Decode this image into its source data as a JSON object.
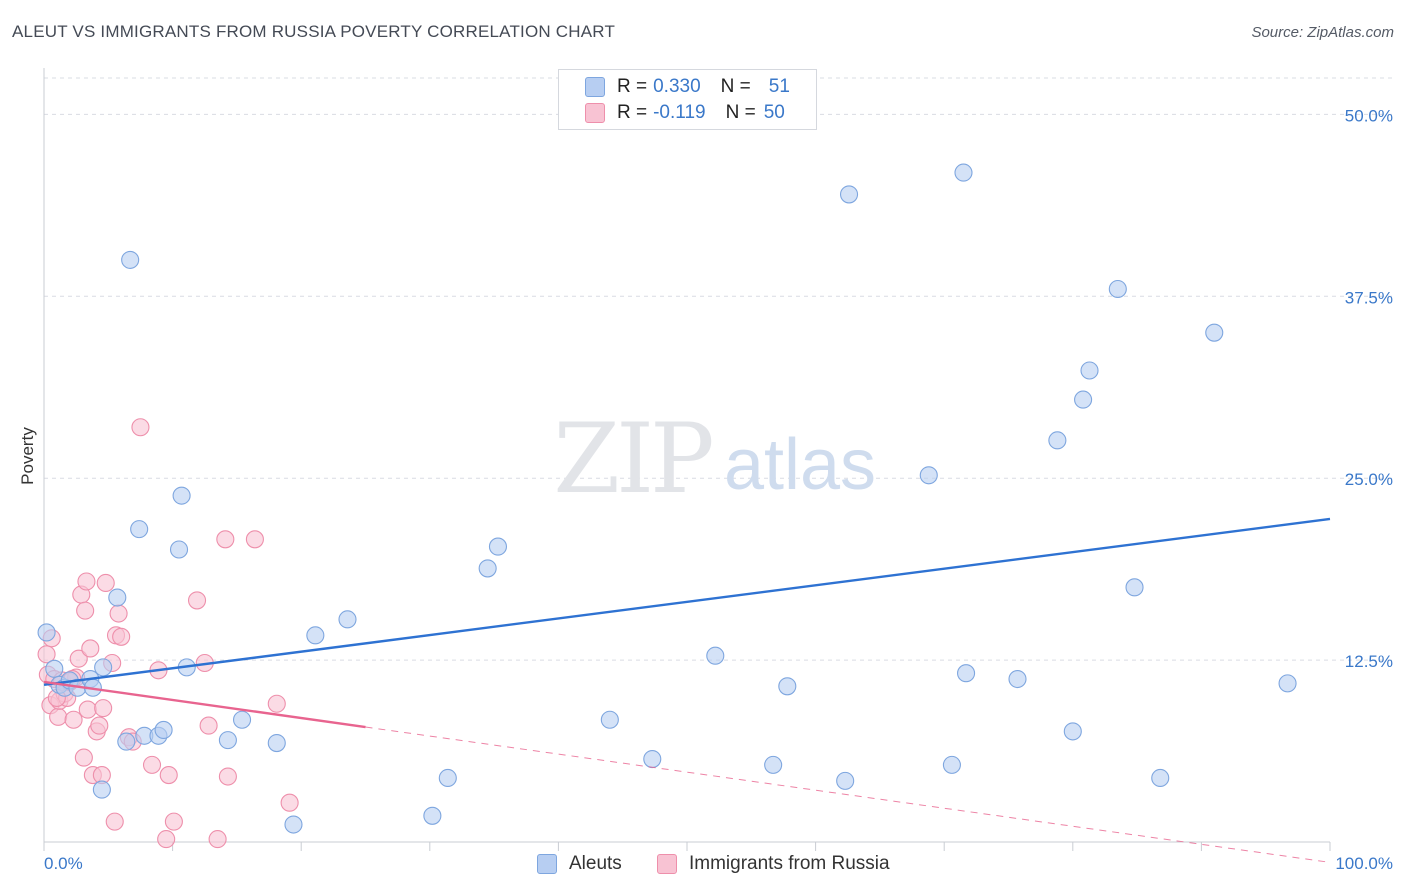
{
  "title": "ALEUT VS IMMIGRANTS FROM RUSSIA POVERTY CORRELATION CHART",
  "source": "Source: ZipAtlas.com",
  "watermark": {
    "zip": "ZIP",
    "atlas": "atlas"
  },
  "colors": {
    "blue_fill": "#b7cef2",
    "blue_stroke": "#7ea6df",
    "blue_line": "#2e72d2",
    "pink_fill": "#f8c3d3",
    "pink_stroke": "#ee8fab",
    "pink_line": "#e8648f",
    "axis_text": "#3a78c9",
    "grid": "#d9dce3"
  },
  "legend": {
    "rows": [
      {
        "r_label": "R =",
        "r_value": "0.330",
        "n_label": "N =",
        "n_value": "51"
      },
      {
        "r_label": "R =",
        "r_value": "-0.119",
        "n_label": "N =",
        "n_value": "50"
      }
    ]
  },
  "bottom_legend": {
    "series1": "Aleuts",
    "series2": "Immigrants from Russia"
  },
  "chart_data": {
    "type": "scatter",
    "title": "ALEUT VS IMMIGRANTS FROM RUSSIA POVERTY CORRELATION CHART",
    "xlabel": "",
    "ylabel": "Poverty",
    "xlim": [
      0,
      100
    ],
    "ylim": [
      0,
      52.5
    ],
    "x_tick_labels": [
      "0.0%",
      "100.0%"
    ],
    "y_ticks": [
      12.5,
      25.0,
      37.5,
      50.0
    ],
    "y_tick_labels": [
      "12.5%",
      "25.0%",
      "37.5%",
      "50.0%"
    ],
    "grid": true,
    "series": [
      {
        "name": "Aleuts",
        "points": [
          [
            0.2,
            14.4
          ],
          [
            0.8,
            11.9
          ],
          [
            1.2,
            10.8
          ],
          [
            1.6,
            10.6
          ],
          [
            2.0,
            11.1
          ],
          [
            2.6,
            10.6
          ],
          [
            3.6,
            11.2
          ],
          [
            3.8,
            10.6
          ],
          [
            4.5,
            3.6
          ],
          [
            4.6,
            12.0
          ],
          [
            5.7,
            16.8
          ],
          [
            6.4,
            6.9
          ],
          [
            6.7,
            40.0
          ],
          [
            7.4,
            21.5
          ],
          [
            7.8,
            7.3
          ],
          [
            8.9,
            7.3
          ],
          [
            9.3,
            7.7
          ],
          [
            10.5,
            20.1
          ],
          [
            10.7,
            23.8
          ],
          [
            11.1,
            12.0
          ],
          [
            14.3,
            7.0
          ],
          [
            15.4,
            8.4
          ],
          [
            18.1,
            6.8
          ],
          [
            19.4,
            1.2
          ],
          [
            21.1,
            14.2
          ],
          [
            23.6,
            15.3
          ],
          [
            30.2,
            1.8
          ],
          [
            31.4,
            4.4
          ],
          [
            34.5,
            18.8
          ],
          [
            35.3,
            20.3
          ],
          [
            44.0,
            8.4
          ],
          [
            47.3,
            5.7
          ],
          [
            52.2,
            12.8
          ],
          [
            56.7,
            5.3
          ],
          [
            57.8,
            10.7
          ],
          [
            62.3,
            4.2
          ],
          [
            62.6,
            44.5
          ],
          [
            68.8,
            25.2
          ],
          [
            70.6,
            5.3
          ],
          [
            71.5,
            46.0
          ],
          [
            71.7,
            11.6
          ],
          [
            75.7,
            11.2
          ],
          [
            78.8,
            27.6
          ],
          [
            80.0,
            7.6
          ],
          [
            80.8,
            30.4
          ],
          [
            81.3,
            32.4
          ],
          [
            83.5,
            38.0
          ],
          [
            84.8,
            17.5
          ],
          [
            86.8,
            4.4
          ],
          [
            91.0,
            35.0
          ],
          [
            96.7,
            10.9
          ]
        ]
      },
      {
        "name": "Immigrants from Russia",
        "points": [
          [
            0.2,
            12.9
          ],
          [
            0.3,
            11.5
          ],
          [
            0.5,
            9.4
          ],
          [
            0.6,
            14.0
          ],
          [
            0.8,
            11.2
          ],
          [
            1.1,
            8.6
          ],
          [
            1.2,
            9.7
          ],
          [
            1.4,
            11.1
          ],
          [
            1.6,
            10.2
          ],
          [
            1.8,
            9.9
          ],
          [
            2.0,
            11.0
          ],
          [
            2.3,
            8.4
          ],
          [
            2.5,
            11.3
          ],
          [
            2.7,
            12.6
          ],
          [
            2.9,
            17.0
          ],
          [
            3.1,
            5.8
          ],
          [
            3.2,
            15.9
          ],
          [
            3.4,
            9.1
          ],
          [
            3.6,
            13.3
          ],
          [
            3.8,
            4.6
          ],
          [
            4.1,
            7.6
          ],
          [
            4.3,
            8.0
          ],
          [
            4.5,
            4.6
          ],
          [
            4.6,
            9.2
          ],
          [
            4.8,
            17.8
          ],
          [
            5.3,
            12.3
          ],
          [
            5.5,
            1.4
          ],
          [
            5.6,
            14.2
          ],
          [
            5.8,
            15.7
          ],
          [
            6.6,
            7.2
          ],
          [
            6.9,
            6.9
          ],
          [
            7.5,
            28.5
          ],
          [
            8.4,
            5.3
          ],
          [
            8.9,
            11.8
          ],
          [
            9.5,
            0.2
          ],
          [
            9.7,
            4.6
          ],
          [
            10.1,
            1.4
          ],
          [
            11.9,
            16.6
          ],
          [
            12.5,
            12.3
          ],
          [
            12.8,
            8.0
          ],
          [
            13.5,
            0.2
          ],
          [
            14.1,
            20.8
          ],
          [
            14.3,
            4.5
          ],
          [
            16.4,
            20.8
          ],
          [
            18.1,
            9.5
          ],
          [
            19.1,
            2.7
          ],
          [
            3.3,
            17.9
          ],
          [
            2.2,
            11.2
          ],
          [
            1.0,
            9.9
          ],
          [
            6.0,
            14.1
          ]
        ]
      }
    ],
    "trend_lines": [
      {
        "series": "Aleuts",
        "x": [
          0,
          100
        ],
        "y": [
          10.8,
          22.2
        ],
        "style": "solid"
      },
      {
        "series": "Immigrants from Russia",
        "x": [
          0,
          25
        ],
        "y": [
          11.0,
          7.9
        ],
        "style": "solid"
      },
      {
        "series": "Immigrants from Russia",
        "x": [
          25,
          100
        ],
        "y": [
          7.9,
          -1.4
        ],
        "style": "dashed"
      }
    ]
  }
}
